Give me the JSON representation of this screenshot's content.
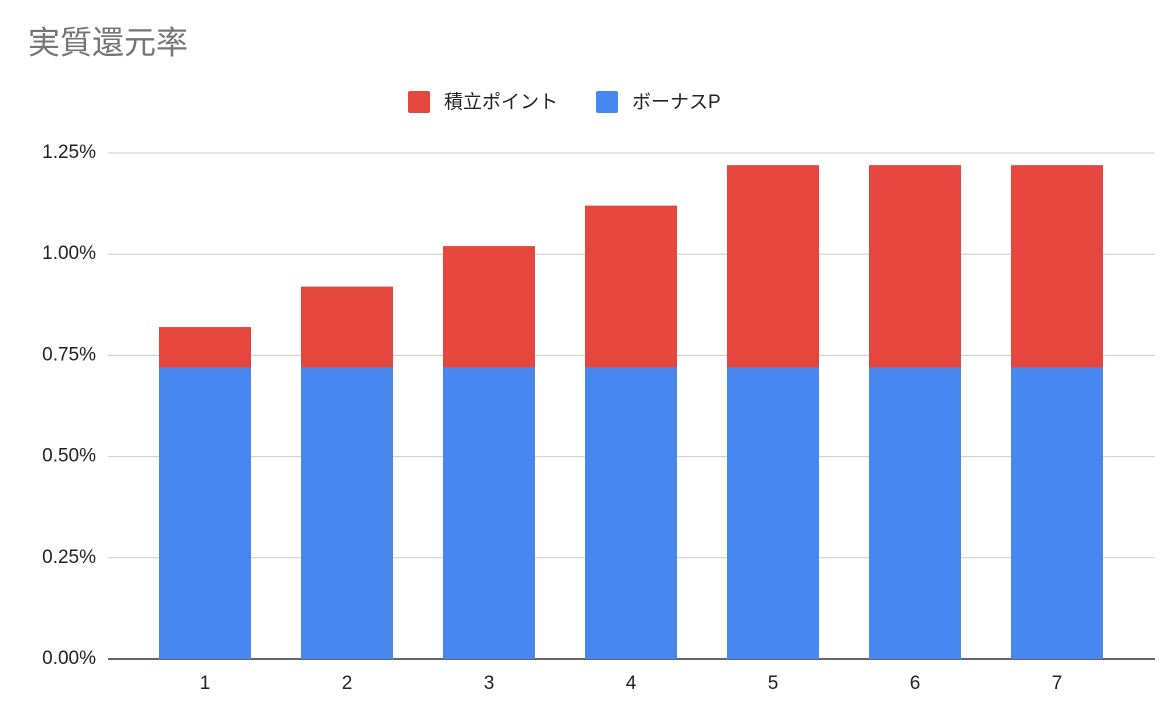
{
  "chart_data": {
    "type": "stacked_bar",
    "title": "実質還元率",
    "categories": [
      "1",
      "2",
      "3",
      "4",
      "5",
      "6",
      "7"
    ],
    "series": [
      {
        "name": "ボーナスP",
        "color": "#4688ef",
        "values": [
          0.72,
          0.72,
          0.72,
          0.72,
          0.72,
          0.72,
          0.72
        ]
      },
      {
        "name": "積立ポイント",
        "color": "#e5463e",
        "values": [
          0.1,
          0.2,
          0.3,
          0.4,
          0.5,
          0.5,
          0.5
        ]
      }
    ],
    "legend_order": [
      1,
      0
    ],
    "ylim": [
      0,
      1.25
    ],
    "yticks": [
      {
        "value": 0,
        "label": "0.00%"
      },
      {
        "value": 0.25,
        "label": "0.25%"
      },
      {
        "value": 0.5,
        "label": "0.50%"
      },
      {
        "value": 0.75,
        "label": "0.75%"
      },
      {
        "value": 1,
        "label": "1.00%"
      },
      {
        "value": 1.25,
        "label": "1.25%"
      }
    ],
    "grid": true
  }
}
